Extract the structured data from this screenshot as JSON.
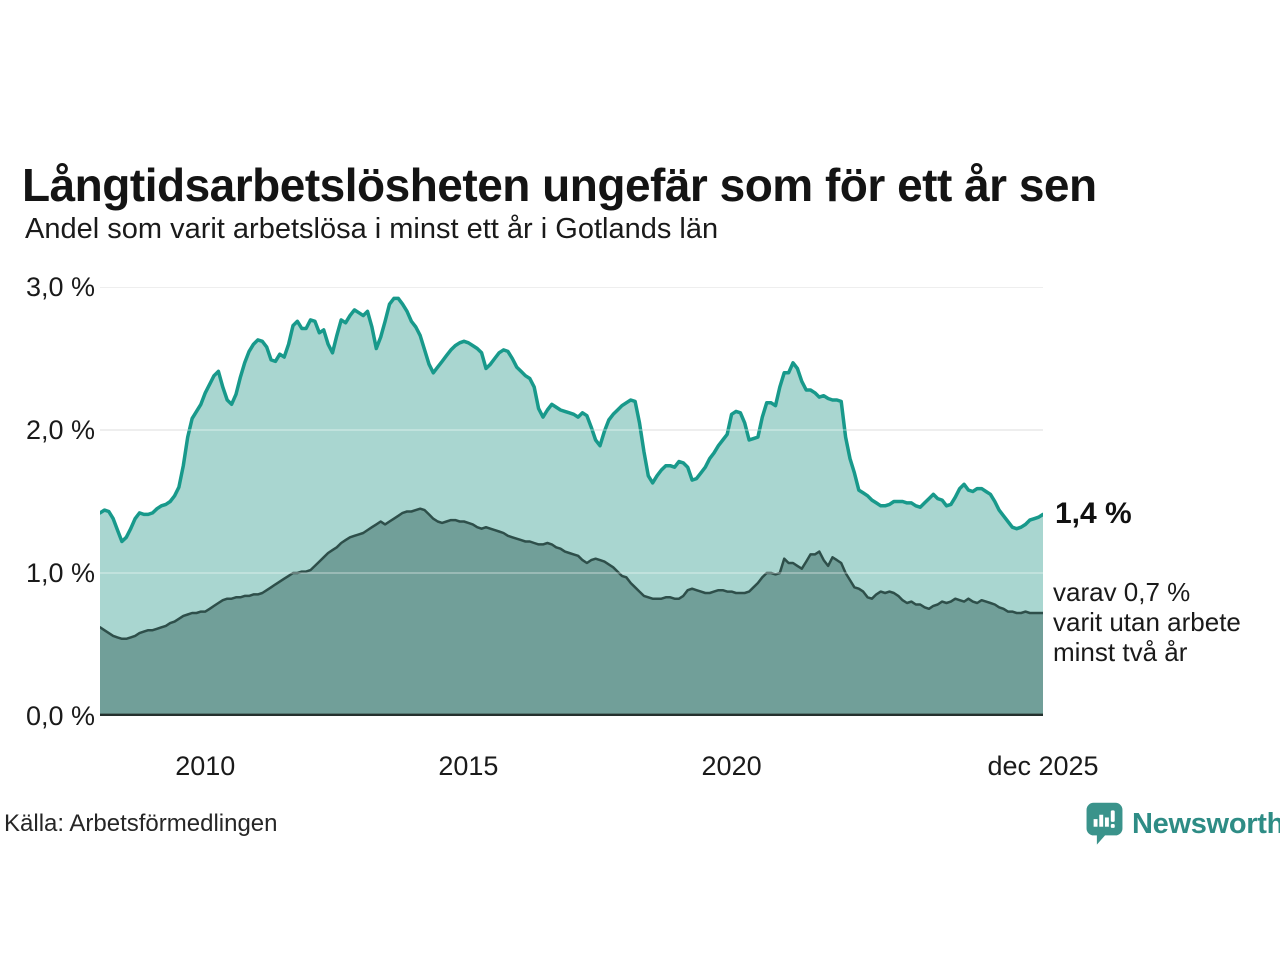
{
  "title": "Långtidsarbetslösheten ungefär som för ett år sen",
  "subtitle": "Andel som varit arbetslösa i minst ett år i Gotlands län",
  "source": "Källa: Arbetsförmedlingen",
  "branding": {
    "name": "Newsworthy",
    "logo_color": "#3a938b",
    "wordmark_color": "#2e8c85"
  },
  "chart_data": {
    "type": "area",
    "title": "Andel som varit arbetslösa i minst ett år i Gotlands län",
    "unit": "%",
    "frequency": "monthly",
    "x_start": "2008-01",
    "x_end": "2025-12",
    "ylim": [
      0,
      3
    ],
    "grid": true,
    "colors": {
      "gridline": "#e0e0e0",
      "axis_line": "#24302d"
    },
    "y_ticks": [
      {
        "label": "3,0 %",
        "value": 3.0
      },
      {
        "label": "2,0 %",
        "value": 2.0
      },
      {
        "label": "1,0 %",
        "value": 1.0
      },
      {
        "label": "0,0 %",
        "value": 0.0
      }
    ],
    "x_ticks": [
      {
        "label": "2010",
        "month_index": 24
      },
      {
        "label": "2015",
        "month_index": 84
      },
      {
        "label": "2020",
        "month_index": 144
      },
      {
        "label": "dec 2025",
        "month_index": 215
      }
    ],
    "series": [
      {
        "name": "Andel arbetslösa minst ett år",
        "line_color": "#18998b",
        "fill_color": "#a9d6d0",
        "line_width": 3.5,
        "values": [
          1.42,
          1.44,
          1.43,
          1.38,
          1.3,
          1.22,
          1.25,
          1.31,
          1.38,
          1.42,
          1.41,
          1.41,
          1.42,
          1.45,
          1.47,
          1.48,
          1.5,
          1.54,
          1.6,
          1.75,
          1.95,
          2.08,
          2.13,
          2.18,
          2.26,
          2.32,
          2.38,
          2.41,
          2.3,
          2.21,
          2.18,
          2.25,
          2.37,
          2.47,
          2.55,
          2.6,
          2.63,
          2.62,
          2.58,
          2.49,
          2.48,
          2.53,
          2.51,
          2.6,
          2.73,
          2.76,
          2.71,
          2.71,
          2.77,
          2.76,
          2.68,
          2.7,
          2.6,
          2.54,
          2.66,
          2.77,
          2.75,
          2.8,
          2.84,
          2.82,
          2.8,
          2.83,
          2.72,
          2.57,
          2.65,
          2.76,
          2.88,
          2.92,
          2.92,
          2.88,
          2.83,
          2.76,
          2.72,
          2.66,
          2.56,
          2.46,
          2.4,
          2.44,
          2.48,
          2.52,
          2.56,
          2.59,
          2.61,
          2.62,
          2.61,
          2.59,
          2.57,
          2.54,
          2.43,
          2.46,
          2.5,
          2.54,
          2.56,
          2.55,
          2.5,
          2.44,
          2.41,
          2.38,
          2.36,
          2.3,
          2.15,
          2.09,
          2.14,
          2.18,
          2.16,
          2.14,
          2.13,
          2.12,
          2.11,
          2.09,
          2.12,
          2.1,
          2.02,
          1.93,
          1.89,
          1.99,
          2.07,
          2.11,
          2.14,
          2.17,
          2.19,
          2.21,
          2.2,
          2.05,
          1.85,
          1.68,
          1.63,
          1.68,
          1.72,
          1.75,
          1.75,
          1.74,
          1.78,
          1.77,
          1.74,
          1.65,
          1.66,
          1.7,
          1.74,
          1.8,
          1.84,
          1.89,
          1.93,
          1.97,
          2.11,
          2.13,
          2.12,
          2.05,
          1.93,
          1.94,
          1.95,
          2.09,
          2.19,
          2.19,
          2.17,
          2.3,
          2.4,
          2.4,
          2.47,
          2.43,
          2.34,
          2.28,
          2.28,
          2.26,
          2.23,
          2.24,
          2.22,
          2.21,
          2.21,
          2.2,
          1.95,
          1.8,
          1.7,
          1.58,
          1.56,
          1.54,
          1.51,
          1.49,
          1.47,
          1.47,
          1.48,
          1.5,
          1.5,
          1.5,
          1.49,
          1.49,
          1.47,
          1.46,
          1.49,
          1.52,
          1.55,
          1.52,
          1.51,
          1.47,
          1.48,
          1.53,
          1.59,
          1.62,
          1.58,
          1.57,
          1.59,
          1.59,
          1.57,
          1.55,
          1.5,
          1.44,
          1.4,
          1.36,
          1.32,
          1.31,
          1.32,
          1.34,
          1.37,
          1.38,
          1.39,
          1.41
        ]
      },
      {
        "name": "Andel arbetslösa minst två år",
        "line_color": "#2e4f4a",
        "fill_color": "#719f99",
        "line_width": 2.5,
        "values": [
          0.62,
          0.6,
          0.58,
          0.56,
          0.55,
          0.54,
          0.54,
          0.55,
          0.56,
          0.58,
          0.59,
          0.6,
          0.6,
          0.61,
          0.62,
          0.63,
          0.65,
          0.66,
          0.68,
          0.7,
          0.71,
          0.72,
          0.72,
          0.73,
          0.73,
          0.75,
          0.77,
          0.79,
          0.81,
          0.82,
          0.82,
          0.83,
          0.83,
          0.84,
          0.84,
          0.85,
          0.85,
          0.86,
          0.88,
          0.9,
          0.92,
          0.94,
          0.96,
          0.98,
          1.0,
          1.0,
          1.01,
          1.01,
          1.02,
          1.05,
          1.08,
          1.11,
          1.14,
          1.16,
          1.18,
          1.21,
          1.23,
          1.25,
          1.26,
          1.27,
          1.28,
          1.3,
          1.32,
          1.34,
          1.36,
          1.34,
          1.36,
          1.38,
          1.4,
          1.42,
          1.43,
          1.43,
          1.44,
          1.45,
          1.44,
          1.41,
          1.38,
          1.36,
          1.35,
          1.36,
          1.37,
          1.37,
          1.36,
          1.36,
          1.35,
          1.34,
          1.32,
          1.31,
          1.32,
          1.31,
          1.3,
          1.29,
          1.28,
          1.26,
          1.25,
          1.24,
          1.23,
          1.22,
          1.22,
          1.21,
          1.2,
          1.2,
          1.21,
          1.2,
          1.18,
          1.17,
          1.15,
          1.14,
          1.13,
          1.12,
          1.09,
          1.07,
          1.09,
          1.1,
          1.09,
          1.08,
          1.06,
          1.04,
          1.01,
          0.98,
          0.97,
          0.93,
          0.9,
          0.87,
          0.84,
          0.83,
          0.82,
          0.82,
          0.82,
          0.83,
          0.83,
          0.82,
          0.82,
          0.84,
          0.88,
          0.89,
          0.88,
          0.87,
          0.86,
          0.86,
          0.87,
          0.88,
          0.88,
          0.87,
          0.87,
          0.86,
          0.86,
          0.86,
          0.87,
          0.9,
          0.93,
          0.97,
          1.0,
          1.0,
          0.99,
          1.0,
          1.1,
          1.07,
          1.07,
          1.05,
          1.03,
          1.08,
          1.13,
          1.13,
          1.15,
          1.09,
          1.05,
          1.11,
          1.09,
          1.07,
          1.0,
          0.95,
          0.9,
          0.89,
          0.87,
          0.83,
          0.82,
          0.85,
          0.87,
          0.86,
          0.87,
          0.86,
          0.84,
          0.81,
          0.79,
          0.8,
          0.78,
          0.78,
          0.76,
          0.75,
          0.77,
          0.78,
          0.8,
          0.79,
          0.8,
          0.82,
          0.81,
          0.8,
          0.82,
          0.8,
          0.79,
          0.81,
          0.8,
          0.79,
          0.78,
          0.76,
          0.75,
          0.73,
          0.73,
          0.72,
          0.72,
          0.73,
          0.72,
          0.72,
          0.72,
          0.72
        ]
      }
    ],
    "end_labels": {
      "total_label": "1,4 %",
      "annotation_lines": [
        "varav 0,7 %",
        "varit utan arbete",
        "minst två år"
      ]
    }
  }
}
